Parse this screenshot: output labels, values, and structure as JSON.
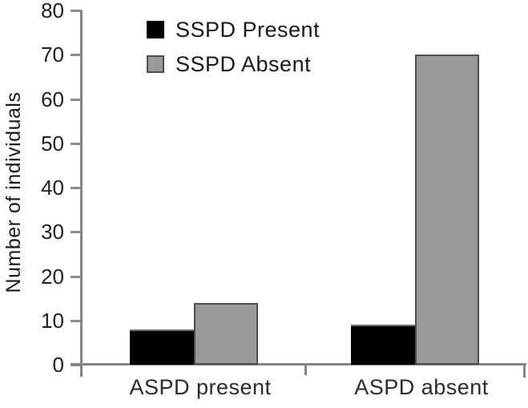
{
  "chart_data": {
    "type": "bar",
    "title": "",
    "categories": [
      "ASPD present",
      "ASPD absent"
    ],
    "series": [
      {
        "name": "SSPD Present",
        "color": "#000000",
        "values": [
          8,
          9
        ]
      },
      {
        "name": "SSPD Absent",
        "color": "#9a9a9a",
        "values": [
          14,
          70
        ]
      }
    ],
    "xlabel": "",
    "ylabel": "Number of individuals",
    "ylim": [
      0,
      80
    ],
    "yticks": [
      0,
      10,
      20,
      30,
      40,
      50,
      60,
      70,
      80
    ],
    "grid": false,
    "legend_position": "top-left-inside",
    "axis_color": "#858585",
    "bar_border_color": "#4d4d4d"
  }
}
